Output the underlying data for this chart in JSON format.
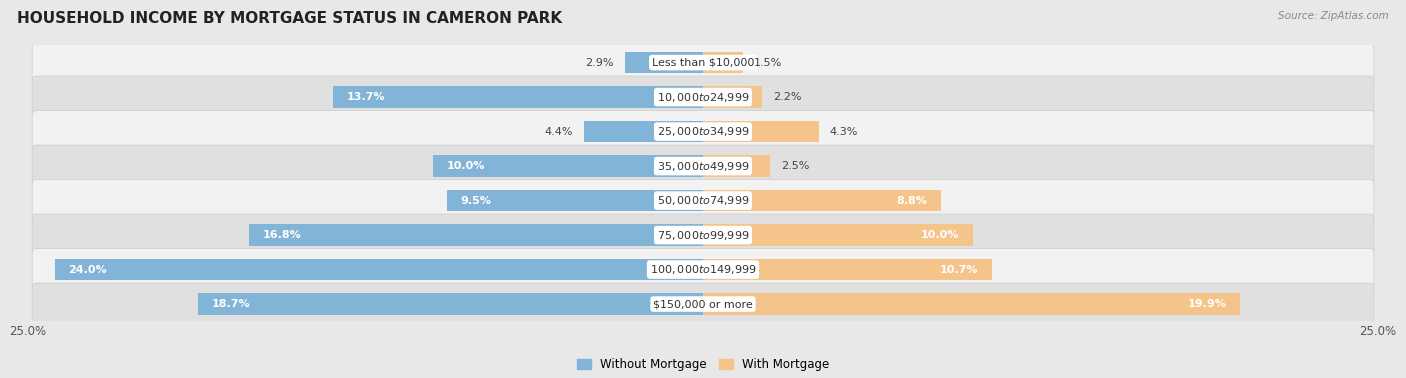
{
  "title": "HOUSEHOLD INCOME BY MORTGAGE STATUS IN CAMERON PARK",
  "source": "Source: ZipAtlas.com",
  "categories": [
    "Less than $10,000",
    "$10,000 to $24,999",
    "$25,000 to $34,999",
    "$35,000 to $49,999",
    "$50,000 to $74,999",
    "$75,000 to $99,999",
    "$100,000 to $149,999",
    "$150,000 or more"
  ],
  "without_mortgage": [
    2.9,
    13.7,
    4.4,
    10.0,
    9.5,
    16.8,
    24.0,
    18.7
  ],
  "with_mortgage": [
    1.5,
    2.2,
    4.3,
    2.5,
    8.8,
    10.0,
    10.7,
    19.9
  ],
  "color_without": "#82b4d8",
  "color_with": "#f5c48a",
  "axis_max": 25.0,
  "bg_color": "#e8e8e8",
  "row_bg_even": "#f2f2f2",
  "row_bg_odd": "#e0e0e0",
  "legend_label_without": "Without Mortgage",
  "legend_label_with": "With Mortgage",
  "inside_label_threshold": 6.0,
  "label_color_inside": "white",
  "label_color_outside": "#444444",
  "cat_label_color": "#333333",
  "title_fontsize": 11,
  "label_fontsize": 8,
  "cat_fontsize": 8
}
